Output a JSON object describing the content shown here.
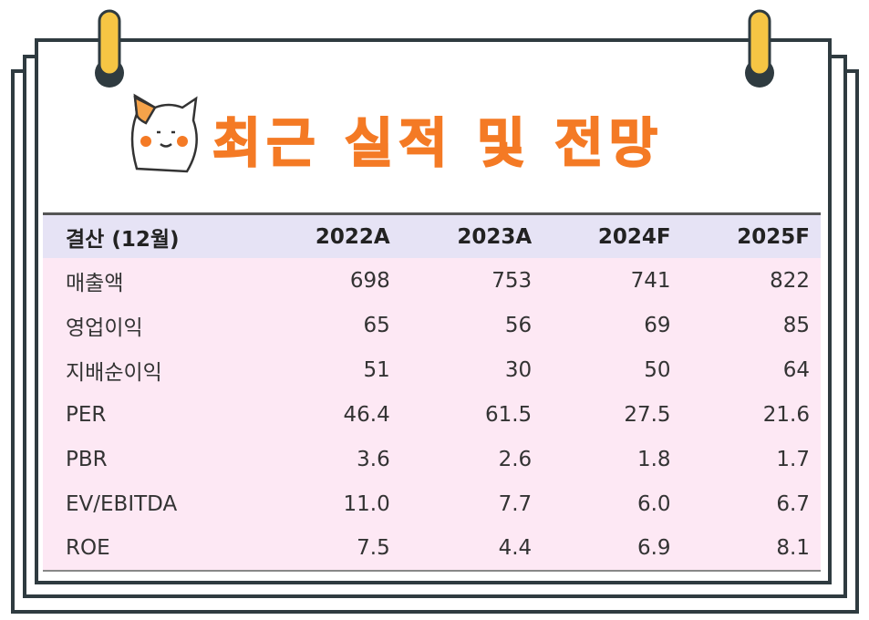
{
  "header": {
    "title": "최근 실적 및 전망"
  },
  "table": {
    "columns": [
      "결산 (12월)",
      "2022A",
      "2023A",
      "2024F",
      "2025F"
    ],
    "rows": [
      [
        "매출액",
        "698",
        "753",
        "741",
        "822"
      ],
      [
        "영업이익",
        "65",
        "56",
        "69",
        "85"
      ],
      [
        "지배순이익",
        "51",
        "30",
        "50",
        "64"
      ],
      [
        "PER",
        "46.4",
        "61.5",
        "27.5",
        "21.6"
      ],
      [
        "PBR",
        "3.6",
        "2.6",
        "1.8",
        "1.7"
      ],
      [
        "EV/EBITDA",
        "11.0",
        "7.7",
        "6.0",
        "6.7"
      ],
      [
        "ROE",
        "7.5",
        "4.4",
        "6.9",
        "8.1"
      ]
    ]
  }
}
